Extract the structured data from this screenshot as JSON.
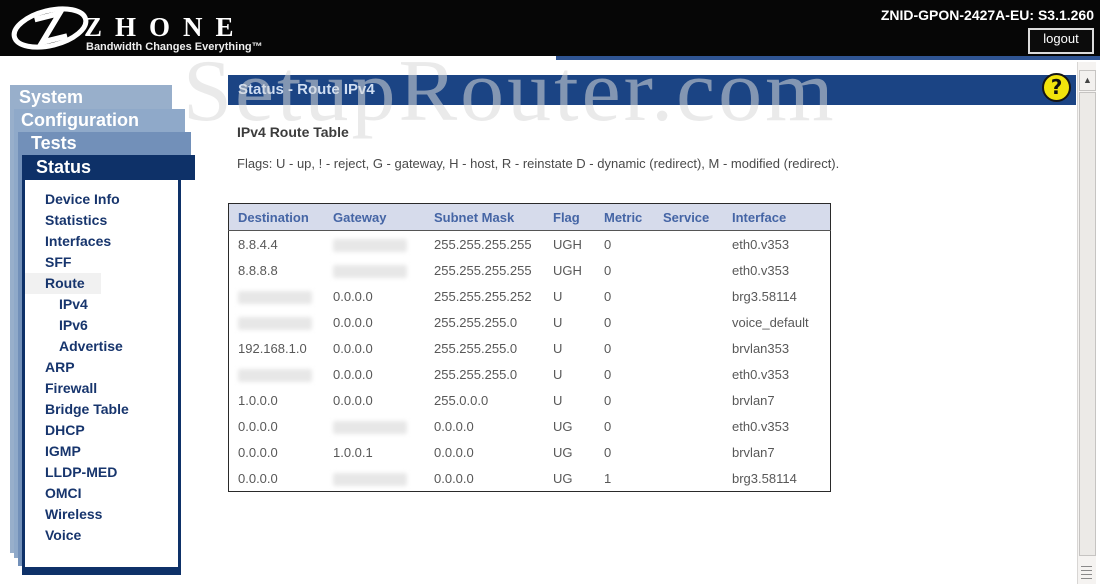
{
  "header": {
    "brand": "ZHONE",
    "tagline": "Bandwidth Changes Everything™",
    "device_model": "ZNID-GPON-2427A-EU: S3.1.260",
    "logout_label": "logout"
  },
  "watermark": "SetupRouter.com",
  "sidebar": {
    "tabs": [
      {
        "label": "System",
        "active": false
      },
      {
        "label": "Configuration",
        "active": false
      },
      {
        "label": "Tests",
        "active": false
      },
      {
        "label": "Status",
        "active": true
      }
    ],
    "items": [
      {
        "label": "Device Info"
      },
      {
        "label": "Statistics"
      },
      {
        "label": "Interfaces"
      },
      {
        "label": "SFF"
      },
      {
        "label": "Route",
        "highlighted": true
      },
      {
        "label": "IPv4",
        "indent": 1
      },
      {
        "label": "IPv6",
        "indent": 1
      },
      {
        "label": "Advertise",
        "indent": 1
      },
      {
        "label": "ARP"
      },
      {
        "label": "Firewall"
      },
      {
        "label": "Bridge Table"
      },
      {
        "label": "DHCP"
      },
      {
        "label": "IGMP"
      },
      {
        "label": "LLDP-MED"
      },
      {
        "label": "OMCI"
      },
      {
        "label": "Wireless"
      },
      {
        "label": "Voice"
      }
    ]
  },
  "content": {
    "page_title": "Status - Route IPv4",
    "section_title": "IPv4 Route Table",
    "flags_legend": "Flags: U - up, ! - reject, G - gateway, H - host, R - reinstate D - dynamic (redirect), M - modified (redirect).",
    "table": {
      "columns": [
        "Destination",
        "Gateway",
        "Subnet Mask",
        "Flag",
        "Metric",
        "Service",
        "Interface"
      ],
      "rows": [
        {
          "cells": [
            "8.8.4.4",
            "[redacted]",
            "255.255.255.255",
            "UGH",
            "0",
            "",
            "eth0.v353"
          ]
        },
        {
          "cells": [
            "8.8.8.8",
            "[redacted]",
            "255.255.255.255",
            "UGH",
            "0",
            "",
            "eth0.v353"
          ]
        },
        {
          "cells": [
            "[redacted]",
            "0.0.0.0",
            "255.255.255.252",
            "U",
            "0",
            "",
            "brg3.58114"
          ]
        },
        {
          "cells": [
            "[redacted]",
            "0.0.0.0",
            "255.255.255.0",
            "U",
            "0",
            "",
            "voice_default"
          ]
        },
        {
          "cells": [
            "192.168.1.0",
            "0.0.0.0",
            "255.255.255.0",
            "U",
            "0",
            "",
            "brvlan353"
          ]
        },
        {
          "cells": [
            "[redacted]",
            "0.0.0.0",
            "255.255.255.0",
            "U",
            "0",
            "",
            "eth0.v353"
          ]
        },
        {
          "cells": [
            "1.0.0.0",
            "0.0.0.0",
            "255.0.0.0",
            "U",
            "0",
            "",
            "brvlan7"
          ]
        },
        {
          "cells": [
            "0.0.0.0",
            "[redacted]",
            "0.0.0.0",
            "UG",
            "0",
            "",
            "eth0.v353"
          ]
        },
        {
          "cells": [
            "0.0.0.0",
            "1.0.0.1",
            "0.0.0.0",
            "UG",
            "0",
            "",
            "brvlan7"
          ]
        },
        {
          "cells": [
            "0.0.0.0",
            "[redacted]",
            "0.0.0.0",
            "UG",
            "1",
            "",
            "brg3.58114"
          ]
        }
      ]
    }
  },
  "icons": {
    "help": "?",
    "scroll_up": "▲"
  },
  "colors": {
    "nav_active_navy": "#0e3168",
    "page_header_blue": "#1b4484",
    "table_header_bg": "#d6dbeb",
    "help_yellow": "#f2e40c",
    "topbar_black": "#060606"
  }
}
